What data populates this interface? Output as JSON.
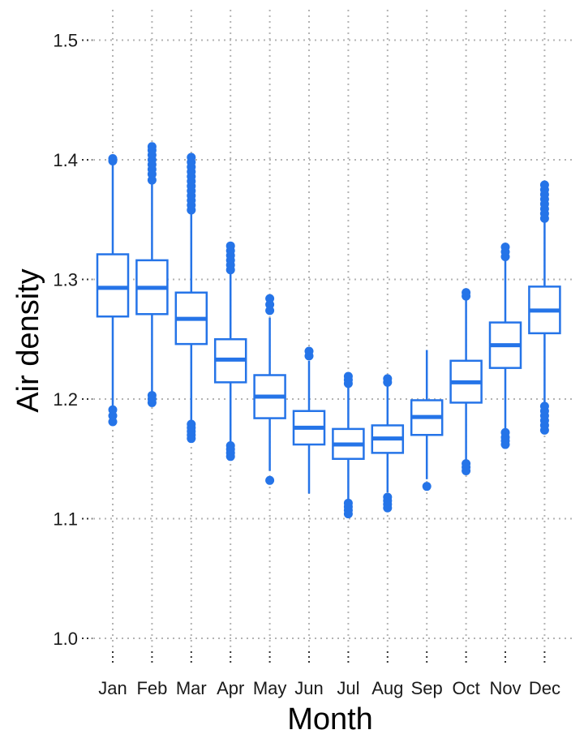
{
  "chart_data": {
    "type": "boxplot",
    "xlabel": "Month",
    "ylabel": "Air density",
    "ylim": [
      0.98,
      1.525
    ],
    "yticks": [
      1.0,
      1.1,
      1.2,
      1.3,
      1.4,
      1.5
    ],
    "ytick_labels": [
      "1.0",
      "1.1",
      "1.2",
      "1.3",
      "1.4",
      "1.5"
    ],
    "grid": true,
    "color": "#2574e8",
    "categories": [
      "Jan",
      "Feb",
      "Mar",
      "Apr",
      "May",
      "Jun",
      "Jul",
      "Aug",
      "Sep",
      "Oct",
      "Nov",
      "Dec"
    ],
    "boxes": [
      {
        "month": "Jan",
        "whisker_low": 1.193,
        "q1": 1.269,
        "median": 1.293,
        "q3": 1.321,
        "whisker_high": 1.396,
        "outliers_low": [
          1.181,
          1.186,
          1.191
        ],
        "outliers_high": [
          1.399,
          1.401
        ]
      },
      {
        "month": "Feb",
        "whisker_low": 1.205,
        "q1": 1.271,
        "median": 1.293,
        "q3": 1.316,
        "whisker_high": 1.38,
        "outliers_low": [
          1.197,
          1.2,
          1.203
        ],
        "outliers_high": [
          1.383,
          1.388,
          1.392,
          1.396,
          1.4,
          1.404,
          1.408,
          1.411
        ]
      },
      {
        "month": "Mar",
        "whisker_low": 1.18,
        "q1": 1.246,
        "median": 1.267,
        "q3": 1.289,
        "whisker_high": 1.355,
        "outliers_low": [
          1.167,
          1.17,
          1.173,
          1.176,
          1.179
        ],
        "outliers_high": [
          1.358,
          1.362,
          1.366,
          1.37,
          1.374,
          1.378,
          1.382,
          1.386,
          1.39,
          1.394,
          1.398,
          1.402
        ]
      },
      {
        "month": "Apr",
        "whisker_low": 1.163,
        "q1": 1.214,
        "median": 1.233,
        "q3": 1.25,
        "whisker_high": 1.305,
        "outliers_low": [
          1.152,
          1.155,
          1.158,
          1.161
        ],
        "outliers_high": [
          1.308,
          1.312,
          1.316,
          1.32,
          1.324,
          1.328
        ]
      },
      {
        "month": "May",
        "whisker_low": 1.14,
        "q1": 1.184,
        "median": 1.202,
        "q3": 1.22,
        "whisker_high": 1.268,
        "outliers_low": [
          1.132
        ],
        "outliers_high": [
          1.274,
          1.279,
          1.284
        ]
      },
      {
        "month": "Jun",
        "whisker_low": 1.121,
        "q1": 1.162,
        "median": 1.176,
        "q3": 1.19,
        "whisker_high": 1.232,
        "outliers_low": [],
        "outliers_high": [
          1.236,
          1.24
        ]
      },
      {
        "month": "Jul",
        "whisker_low": 1.116,
        "q1": 1.15,
        "median": 1.162,
        "q3": 1.175,
        "whisker_high": 1.21,
        "outliers_low": [
          1.104,
          1.107,
          1.11,
          1.113
        ],
        "outliers_high": [
          1.213,
          1.216,
          1.219
        ]
      },
      {
        "month": "Aug",
        "whisker_low": 1.122,
        "q1": 1.155,
        "median": 1.167,
        "q3": 1.178,
        "whisker_high": 1.211,
        "outliers_low": [
          1.109,
          1.112,
          1.115,
          1.118
        ],
        "outliers_high": [
          1.214,
          1.217
        ]
      },
      {
        "month": "Sep",
        "whisker_low": 1.133,
        "q1": 1.17,
        "median": 1.185,
        "q3": 1.199,
        "whisker_high": 1.241,
        "outliers_low": [
          1.127
        ],
        "outliers_high": []
      },
      {
        "month": "Oct",
        "whisker_low": 1.149,
        "q1": 1.197,
        "median": 1.214,
        "q3": 1.232,
        "whisker_high": 1.283,
        "outliers_low": [
          1.14,
          1.143,
          1.146
        ],
        "outliers_high": [
          1.286,
          1.289
        ]
      },
      {
        "month": "Nov",
        "whisker_low": 1.175,
        "q1": 1.226,
        "median": 1.245,
        "q3": 1.264,
        "whisker_high": 1.316,
        "outliers_low": [
          1.162,
          1.165,
          1.168,
          1.172
        ],
        "outliers_high": [
          1.319,
          1.323,
          1.327
        ]
      },
      {
        "month": "Dec",
        "whisker_low": 1.197,
        "q1": 1.255,
        "median": 1.274,
        "q3": 1.294,
        "whisker_high": 1.348,
        "outliers_low": [
          1.174,
          1.178,
          1.182,
          1.186,
          1.19,
          1.194
        ],
        "outliers_high": [
          1.351,
          1.355,
          1.359,
          1.363,
          1.367,
          1.371,
          1.375,
          1.379
        ]
      }
    ]
  }
}
